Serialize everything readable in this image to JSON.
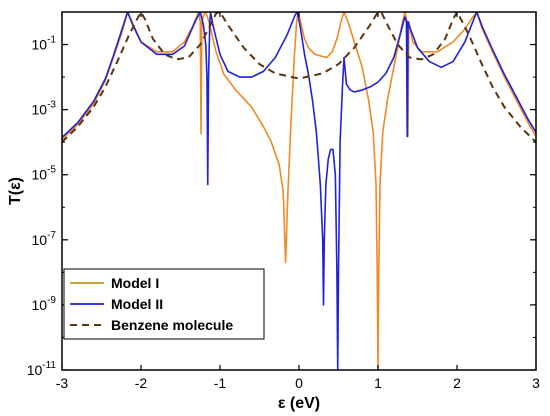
{
  "chart_data": {
    "type": "line",
    "xlabel": "ε (eV)",
    "ylabel": "T(ε)",
    "xlim": [
      -3,
      3
    ],
    "ylim": [
      1e-11,
      1
    ],
    "y_scale": "log",
    "x_ticks": [
      -3,
      -2,
      -1,
      0,
      1,
      2,
      3
    ],
    "y_ticks": [
      {
        "value": 1e-11,
        "mantissa": "10",
        "exp": "-11"
      },
      {
        "value": 1e-09,
        "mantissa": "10",
        "exp": "-9"
      },
      {
        "value": 1e-07,
        "mantissa": "10",
        "exp": "-7"
      },
      {
        "value": 1e-05,
        "mantissa": "10",
        "exp": "-5"
      },
      {
        "value": 0.001,
        "mantissa": "10",
        "exp": "-3"
      },
      {
        "value": 0.1,
        "mantissa": "10",
        "exp": "-1"
      }
    ],
    "legend_position": "bottom-left",
    "series": [
      {
        "name": "Model I",
        "color": "#f08a24",
        "legend_color": "#c8961e",
        "dash": "solid",
        "points": [
          [
            -3.0,
            0.00012
          ],
          [
            -2.8,
            0.00035
          ],
          [
            -2.6,
            0.0015
          ],
          [
            -2.45,
            0.008
          ],
          [
            -2.35,
            0.04
          ],
          [
            -2.25,
            0.2
          ],
          [
            -2.17,
            1.0
          ],
          [
            -2.1,
            0.35
          ],
          [
            -2.0,
            0.12
          ],
          [
            -1.8,
            0.06
          ],
          [
            -1.6,
            0.06
          ],
          [
            -1.45,
            0.12
          ],
          [
            -1.35,
            0.35
          ],
          [
            -1.27,
            1.0
          ],
          [
            -1.25,
            0.5
          ],
          [
            -1.24,
            0.00018
          ],
          [
            -1.23,
            0.5
          ],
          [
            -1.2,
            0.9
          ],
          [
            -1.18,
            1.0
          ],
          [
            -1.14,
            0.5
          ],
          [
            -1.05,
            0.06
          ],
          [
            -0.95,
            0.012
          ],
          [
            -0.8,
            0.004
          ],
          [
            -0.6,
            0.0012
          ],
          [
            -0.45,
            0.0003
          ],
          [
            -0.35,
            0.0001
          ],
          [
            -0.25,
            2e-05
          ],
          [
            -0.2,
            3e-06
          ],
          [
            -0.17,
            2e-08
          ],
          [
            -0.14,
            3e-06
          ],
          [
            -0.1,
            0.0005
          ],
          [
            -0.06,
            0.04
          ],
          [
            -0.03,
            0.5
          ],
          [
            -0.01,
            1.0
          ],
          [
            0.02,
            0.5
          ],
          [
            0.07,
            0.15
          ],
          [
            0.12,
            0.08
          ],
          [
            0.2,
            0.05
          ],
          [
            0.35,
            0.04
          ],
          [
            0.42,
            0.06
          ],
          [
            0.48,
            0.15
          ],
          [
            0.54,
            0.6
          ],
          [
            0.57,
            1.0
          ],
          [
            0.62,
            0.5
          ],
          [
            0.7,
            0.12
          ],
          [
            0.8,
            0.02
          ],
          [
            0.88,
            0.002
          ],
          [
            0.94,
            0.0002
          ],
          [
            0.975,
            5e-06
          ],
          [
            0.99,
            1e-08
          ],
          [
            1.0,
            1e-11
          ],
          [
            1.01,
            1e-08
          ],
          [
            1.025,
            5e-06
          ],
          [
            1.06,
            0.0002
          ],
          [
            1.12,
            0.002
          ],
          [
            1.2,
            0.02
          ],
          [
            1.27,
            0.15
          ],
          [
            1.31,
            0.5
          ],
          [
            1.34,
            1.0
          ],
          [
            1.37,
            0.5
          ],
          [
            1.38,
            0.00015
          ],
          [
            1.39,
            0.5
          ],
          [
            1.44,
            0.12
          ],
          [
            1.55,
            0.06
          ],
          [
            1.75,
            0.06
          ],
          [
            1.95,
            0.12
          ],
          [
            2.1,
            0.3
          ],
          [
            2.2,
            0.7
          ],
          [
            2.25,
            1.0
          ],
          [
            2.32,
            0.3
          ],
          [
            2.45,
            0.06
          ],
          [
            2.6,
            0.01
          ],
          [
            2.75,
            0.002
          ],
          [
            2.9,
            0.0004
          ],
          [
            3.0,
            0.00015
          ]
        ]
      },
      {
        "name": "Model II",
        "color": "#1f22d6",
        "legend_color": "#1f22d6",
        "dash": "solid",
        "points": [
          [
            -3.0,
            0.00014
          ],
          [
            -2.8,
            0.0004
          ],
          [
            -2.6,
            0.0018
          ],
          [
            -2.45,
            0.009
          ],
          [
            -2.35,
            0.045
          ],
          [
            -2.25,
            0.25
          ],
          [
            -2.17,
            1.0
          ],
          [
            -2.1,
            0.4
          ],
          [
            -2.0,
            0.12
          ],
          [
            -1.8,
            0.05
          ],
          [
            -1.6,
            0.05
          ],
          [
            -1.45,
            0.09
          ],
          [
            -1.37,
            0.25
          ],
          [
            -1.3,
            0.6
          ],
          [
            -1.25,
            1.0
          ],
          [
            -1.21,
            0.4
          ],
          [
            -1.18,
            0.1
          ],
          [
            -1.165,
            0.01
          ],
          [
            -1.155,
            5e-06
          ],
          [
            -1.145,
            0.01
          ],
          [
            -1.13,
            0.4
          ],
          [
            -1.12,
            1.0
          ],
          [
            -1.09,
            0.4
          ],
          [
            -1.0,
            0.05
          ],
          [
            -0.9,
            0.015
          ],
          [
            -0.75,
            0.01
          ],
          [
            -0.6,
            0.01
          ],
          [
            -0.45,
            0.015
          ],
          [
            -0.3,
            0.04
          ],
          [
            -0.15,
            0.2
          ],
          [
            -0.05,
            0.8
          ],
          [
            -0.02,
            1.0
          ],
          [
            0.02,
            0.3
          ],
          [
            0.07,
            0.05
          ],
          [
            0.12,
            0.012
          ],
          [
            0.17,
            0.002
          ],
          [
            0.22,
            0.0002
          ],
          [
            0.27,
            5e-06
          ],
          [
            0.3,
            1e-07
          ],
          [
            0.31,
            1e-09
          ],
          [
            0.32,
            1e-07
          ],
          [
            0.34,
            5e-06
          ],
          [
            0.37,
            3e-05
          ],
          [
            0.4,
            6e-05
          ],
          [
            0.43,
            6e-05
          ],
          [
            0.46,
            1e-05
          ],
          [
            0.48,
            1e-08
          ],
          [
            0.49,
            1e-11
          ],
          [
            0.5,
            1e-08
          ],
          [
            0.52,
            0.0001
          ],
          [
            0.55,
            0.005
          ],
          [
            0.57,
            0.04
          ],
          [
            0.6,
            0.006
          ],
          [
            0.65,
            0.004
          ],
          [
            0.7,
            0.0035
          ],
          [
            0.8,
            0.004
          ],
          [
            0.9,
            0.005
          ],
          [
            1.0,
            0.007
          ],
          [
            1.1,
            0.013
          ],
          [
            1.2,
            0.04
          ],
          [
            1.28,
            0.2
          ],
          [
            1.34,
            0.7
          ],
          [
            1.36,
            0.5
          ],
          [
            1.37,
            0.00015
          ],
          [
            1.38,
            0.5
          ],
          [
            1.41,
            0.3
          ],
          [
            1.5,
            0.08
          ],
          [
            1.65,
            0.03
          ],
          [
            1.8,
            0.02
          ],
          [
            1.95,
            0.03
          ],
          [
            2.1,
            0.12
          ],
          [
            2.2,
            0.5
          ],
          [
            2.25,
            1.0
          ],
          [
            2.32,
            0.35
          ],
          [
            2.45,
            0.07
          ],
          [
            2.6,
            0.012
          ],
          [
            2.75,
            0.0025
          ],
          [
            2.9,
            0.0005
          ],
          [
            3.0,
            0.0002
          ]
        ]
      },
      {
        "name": "Benzene molecule",
        "color": "#5a3410",
        "legend_color": "#5a3410",
        "dash": "dashed",
        "points": [
          [
            -3.0,
            0.0001
          ],
          [
            -2.8,
            0.0003
          ],
          [
            -2.6,
            0.0012
          ],
          [
            -2.45,
            0.005
          ],
          [
            -2.3,
            0.03
          ],
          [
            -2.15,
            0.2
          ],
          [
            -2.05,
            0.6
          ],
          [
            -2.0,
            1.0
          ],
          [
            -1.95,
            0.6
          ],
          [
            -1.85,
            0.15
          ],
          [
            -1.7,
            0.05
          ],
          [
            -1.55,
            0.035
          ],
          [
            -1.4,
            0.04
          ],
          [
            -1.25,
            0.1
          ],
          [
            -1.12,
            0.4
          ],
          [
            -1.05,
            0.9
          ],
          [
            -1.0,
            1.0
          ],
          [
            -0.9,
            0.4
          ],
          [
            -0.7,
            0.08
          ],
          [
            -0.5,
            0.025
          ],
          [
            -0.3,
            0.013
          ],
          [
            0.0,
            0.009
          ],
          [
            0.3,
            0.013
          ],
          [
            0.5,
            0.025
          ],
          [
            0.7,
            0.08
          ],
          [
            0.9,
            0.4
          ],
          [
            1.0,
            1.0
          ],
          [
            1.05,
            0.9
          ],
          [
            1.12,
            0.4
          ],
          [
            1.25,
            0.1
          ],
          [
            1.4,
            0.04
          ],
          [
            1.55,
            0.035
          ],
          [
            1.7,
            0.05
          ],
          [
            1.85,
            0.15
          ],
          [
            1.95,
            0.6
          ],
          [
            2.0,
            1.0
          ],
          [
            2.05,
            0.6
          ],
          [
            2.15,
            0.2
          ],
          [
            2.3,
            0.03
          ],
          [
            2.45,
            0.005
          ],
          [
            2.6,
            0.0012
          ],
          [
            2.8,
            0.0003
          ],
          [
            3.0,
            0.0001
          ]
        ]
      }
    ]
  }
}
